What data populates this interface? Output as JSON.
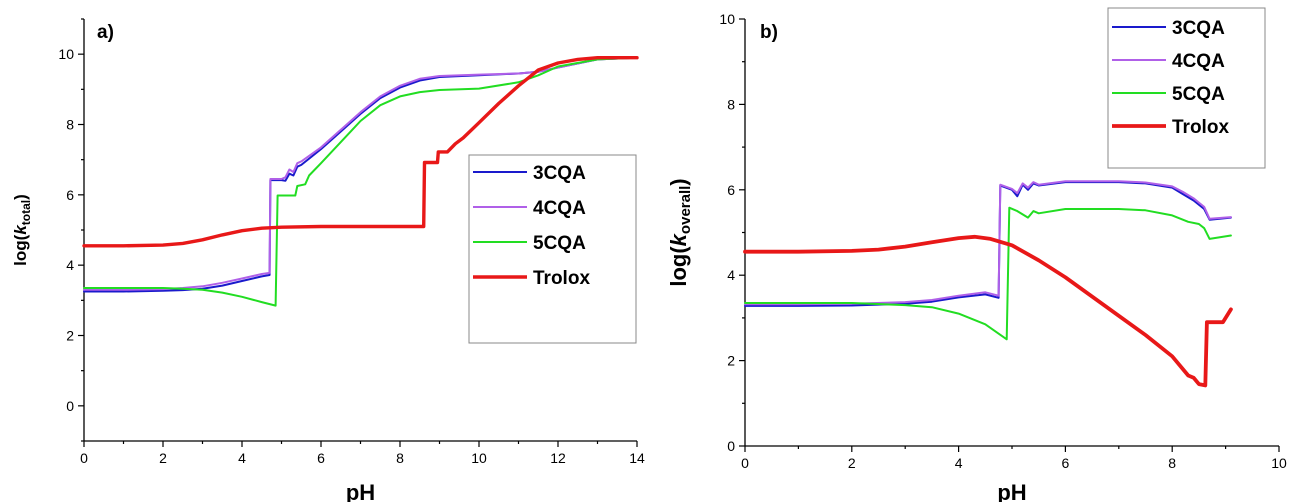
{
  "colors": {
    "3CQA": "#1a1acc",
    "4CQA": "#b060e8",
    "5CQA": "#22dd22",
    "Trolox": "#e81818"
  },
  "chart_data": [
    {
      "type": "line",
      "panel_label": "a)",
      "xlabel": "pH",
      "ylabel": "log(k_total)",
      "ylabel_parts": {
        "prefix": "log(",
        "italic": "k",
        "subscript": "total",
        "suffix": ")"
      },
      "xlim": [
        0,
        14
      ],
      "ylim": [
        -1,
        11
      ],
      "x_ticks": [
        0,
        2,
        4,
        6,
        8,
        10,
        12,
        14
      ],
      "y_ticks": [
        0,
        2,
        4,
        6,
        8,
        10
      ],
      "legend": {
        "placement": "right-middle",
        "entries": [
          "3CQA",
          "4CQA",
          "5CQA",
          "Trolox"
        ]
      },
      "series": [
        {
          "name": "3CQA",
          "x": [
            0,
            1,
            2,
            2.5,
            3,
            3.5,
            4,
            4.5,
            4.7,
            4.72,
            5.0,
            5.1,
            5.2,
            5.3,
            5.4,
            5.5,
            6,
            6.5,
            7,
            7.5,
            8,
            8.5,
            9,
            10,
            11,
            11.5,
            12,
            13,
            14
          ],
          "y": [
            3.25,
            3.25,
            3.27,
            3.29,
            3.33,
            3.42,
            3.55,
            3.68,
            3.72,
            6.42,
            6.42,
            6.4,
            6.6,
            6.55,
            6.8,
            6.85,
            7.3,
            7.8,
            8.3,
            8.75,
            9.05,
            9.25,
            9.35,
            9.4,
            9.45,
            9.5,
            9.62,
            9.85,
            9.9
          ]
        },
        {
          "name": "4CQA",
          "x": [
            0,
            1,
            2,
            2.5,
            3,
            3.5,
            4,
            4.5,
            4.7,
            4.72,
            5.0,
            5.1,
            5.2,
            5.3,
            5.4,
            5.5,
            6,
            6.5,
            7,
            7.5,
            8,
            8.5,
            9,
            10,
            11,
            11.5,
            12,
            13,
            14
          ],
          "y": [
            3.3,
            3.3,
            3.32,
            3.35,
            3.4,
            3.5,
            3.62,
            3.75,
            3.78,
            6.45,
            6.45,
            6.5,
            6.72,
            6.65,
            6.9,
            6.95,
            7.35,
            7.85,
            8.35,
            8.8,
            9.1,
            9.3,
            9.38,
            9.42,
            9.45,
            9.5,
            9.62,
            9.85,
            9.9
          ]
        },
        {
          "name": "5CQA",
          "x": [
            0,
            1,
            2,
            2.5,
            3,
            3.5,
            4,
            4.5,
            4.85,
            4.9,
            5.0,
            5.2,
            5.35,
            5.4,
            5.6,
            5.7,
            6,
            6.5,
            7,
            7.5,
            8,
            8.5,
            9,
            10,
            11,
            11.5,
            12,
            13,
            14
          ],
          "y": [
            3.35,
            3.35,
            3.35,
            3.33,
            3.3,
            3.22,
            3.1,
            2.95,
            2.85,
            5.98,
            5.98,
            5.98,
            5.98,
            6.25,
            6.3,
            6.55,
            6.9,
            7.5,
            8.1,
            8.55,
            8.8,
            8.92,
            8.98,
            9.02,
            9.2,
            9.4,
            9.65,
            9.85,
            9.9
          ]
        },
        {
          "name": "Trolox",
          "x": [
            0,
            1,
            2,
            2.5,
            3,
            3.5,
            4,
            4.5,
            5,
            6,
            7,
            8,
            8.6,
            8.62,
            8.95,
            8.97,
            9.2,
            9.4,
            9.6,
            10,
            10.5,
            11,
            11.5,
            12,
            12.5,
            13,
            14
          ],
          "y": [
            4.55,
            4.55,
            4.57,
            4.62,
            4.72,
            4.86,
            4.98,
            5.05,
            5.08,
            5.1,
            5.1,
            5.1,
            5.1,
            6.92,
            6.92,
            7.22,
            7.22,
            7.45,
            7.62,
            8.05,
            8.6,
            9.1,
            9.55,
            9.75,
            9.85,
            9.9,
            9.9
          ]
        }
      ]
    },
    {
      "type": "line",
      "panel_label": "b)",
      "xlabel": "pH",
      "ylabel": "log(k_overall)",
      "ylabel_parts": {
        "prefix": "log(",
        "italic": "k",
        "subscript": "overall",
        "suffix": ")"
      },
      "xlim": [
        0,
        10
      ],
      "ylim": [
        0,
        10
      ],
      "x_ticks": [
        0,
        2,
        4,
        6,
        8,
        10
      ],
      "y_ticks": [
        0,
        2,
        4,
        6,
        8,
        10
      ],
      "legend": {
        "placement": "top-right",
        "entries": [
          "3CQA",
          "4CQA",
          "5CQA",
          "Trolox"
        ]
      },
      "series": [
        {
          "name": "3CQA",
          "x": [
            0,
            1,
            2,
            3,
            3.5,
            4,
            4.5,
            4.75,
            4.78,
            5.0,
            5.1,
            5.2,
            5.3,
            5.4,
            5.5,
            6,
            6.5,
            7,
            7.5,
            8,
            8.2,
            8.4,
            8.5,
            8.6,
            8.7,
            9.1
          ],
          "y": [
            3.28,
            3.28,
            3.29,
            3.33,
            3.38,
            3.48,
            3.55,
            3.47,
            6.1,
            6.0,
            5.85,
            6.12,
            6.0,
            6.15,
            6.1,
            6.18,
            6.18,
            6.18,
            6.15,
            6.05,
            5.9,
            5.75,
            5.65,
            5.55,
            5.3,
            5.35
          ]
        },
        {
          "name": "4CQA",
          "x": [
            0,
            1,
            2,
            3,
            3.5,
            4,
            4.5,
            4.75,
            4.78,
            5.0,
            5.1,
            5.2,
            5.3,
            5.4,
            5.5,
            6,
            6.5,
            7,
            7.5,
            8,
            8.2,
            8.4,
            8.5,
            8.6,
            8.7,
            9.1
          ],
          "y": [
            3.32,
            3.32,
            3.33,
            3.37,
            3.42,
            3.52,
            3.6,
            3.52,
            6.12,
            6.02,
            5.92,
            6.15,
            6.05,
            6.18,
            6.12,
            6.2,
            6.2,
            6.2,
            6.17,
            6.08,
            5.95,
            5.8,
            5.7,
            5.6,
            5.32,
            5.36
          ]
        },
        {
          "name": "5CQA",
          "x": [
            0,
            1,
            2,
            3,
            3.5,
            4,
            4.5,
            4.9,
            4.95,
            5.1,
            5.3,
            5.4,
            5.5,
            6,
            6.5,
            7,
            7.5,
            8,
            8.3,
            8.5,
            8.6,
            8.7,
            9.1
          ],
          "y": [
            3.35,
            3.35,
            3.35,
            3.3,
            3.25,
            3.1,
            2.85,
            2.5,
            5.58,
            5.5,
            5.35,
            5.5,
            5.45,
            5.55,
            5.55,
            5.55,
            5.52,
            5.4,
            5.25,
            5.2,
            5.1,
            4.85,
            4.93
          ]
        },
        {
          "name": "Trolox",
          "x": [
            0,
            1,
            2,
            2.5,
            3,
            3.5,
            4,
            4.3,
            4.6,
            5,
            5.5,
            6,
            6.5,
            7,
            7.5,
            8,
            8.3,
            8.4,
            8.5,
            8.62,
            8.65,
            8.95,
            9.1
          ],
          "y": [
            4.55,
            4.55,
            4.57,
            4.6,
            4.67,
            4.77,
            4.87,
            4.9,
            4.85,
            4.7,
            4.35,
            3.95,
            3.5,
            3.05,
            2.6,
            2.1,
            1.65,
            1.6,
            1.45,
            1.42,
            2.9,
            2.9,
            3.2
          ]
        }
      ]
    }
  ]
}
